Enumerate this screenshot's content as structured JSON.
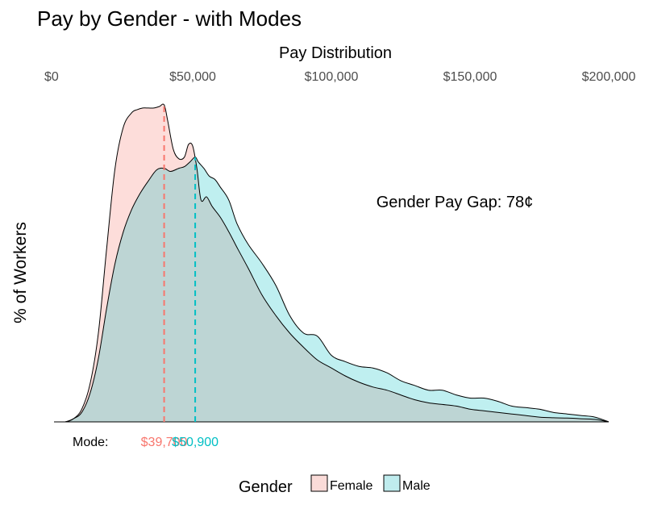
{
  "chart_data": {
    "type": "area",
    "title": "Pay by Gender - with Modes",
    "xlabel": "Pay Distribution",
    "ylabel": "% of Workers",
    "x_axis_position": "top",
    "xlim": [
      0,
      200000
    ],
    "x_ticks": [
      0,
      50000,
      100000,
      150000,
      200000
    ],
    "x_tick_labels": [
      "$0",
      "$50,000",
      "$100,000",
      "$150,000",
      "$200,000"
    ],
    "ylim": [
      0,
      1.0
    ],
    "grid": false,
    "y_tick_labels_shown": false,
    "series": [
      {
        "name": "Female",
        "color": "#F8766D",
        "fill": "#FADBD8",
        "mode": 39700,
        "mode_label": "$39,700",
        "x": [
          0,
          4000,
          7000,
          10000,
          13000,
          16000,
          19000,
          22000,
          25000,
          28000,
          30000,
          32000,
          34000,
          36000,
          38000,
          39700,
          41000,
          43000,
          45000,
          47000,
          48500,
          50000,
          51500,
          53000,
          55000,
          57000,
          60000,
          63000,
          66000,
          70000,
          75000,
          80000,
          85000,
          90000,
          95000,
          100000,
          105000,
          110000,
          115000,
          120000,
          125000,
          130000,
          135000,
          140000,
          145000,
          150000,
          155000,
          160000,
          165000,
          170000,
          175000,
          180000,
          185000,
          190000,
          195000,
          200000
        ],
        "values": [
          0,
          0,
          0.01,
          0.04,
          0.12,
          0.28,
          0.55,
          0.8,
          0.93,
          0.975,
          0.985,
          0.99,
          0.99,
          0.99,
          0.995,
          1.0,
          0.95,
          0.86,
          0.83,
          0.835,
          0.875,
          0.87,
          0.8,
          0.7,
          0.71,
          0.68,
          0.645,
          0.6,
          0.55,
          0.485,
          0.4,
          0.335,
          0.28,
          0.235,
          0.195,
          0.17,
          0.145,
          0.125,
          0.11,
          0.1,
          0.085,
          0.07,
          0.06,
          0.055,
          0.05,
          0.04,
          0.035,
          0.03,
          0.025,
          0.02,
          0.015,
          0.013,
          0.012,
          0.01,
          0.008,
          0
        ]
      },
      {
        "name": "Male",
        "color": "#00BFC4",
        "fill": "#BFECEE",
        "mode": 50900,
        "mode_label": "$50,900",
        "x": [
          0,
          4000,
          7000,
          10000,
          13000,
          16000,
          19000,
          22000,
          25000,
          28000,
          31000,
          34000,
          37000,
          39700,
          42000,
          45000,
          47000,
          49000,
          50900,
          52000,
          54000,
          56000,
          58000,
          60000,
          63000,
          66000,
          70000,
          75000,
          80000,
          85000,
          90000,
          95000,
          100000,
          105000,
          110000,
          115000,
          120000,
          125000,
          130000,
          135000,
          140000,
          145000,
          150000,
          155000,
          160000,
          165000,
          170000,
          175000,
          180000,
          185000,
          190000,
          195000,
          200000
        ],
        "values": [
          0,
          0,
          0.01,
          0.03,
          0.09,
          0.2,
          0.36,
          0.5,
          0.6,
          0.67,
          0.72,
          0.76,
          0.795,
          0.8,
          0.79,
          0.8,
          0.805,
          0.82,
          0.835,
          0.82,
          0.8,
          0.775,
          0.765,
          0.74,
          0.7,
          0.625,
          0.56,
          0.5,
          0.43,
          0.335,
          0.28,
          0.27,
          0.21,
          0.19,
          0.175,
          0.17,
          0.155,
          0.13,
          0.115,
          0.1,
          0.1,
          0.085,
          0.075,
          0.075,
          0.065,
          0.05,
          0.045,
          0.04,
          0.03,
          0.025,
          0.02,
          0.015,
          0
        ]
      }
    ],
    "annotations": [
      {
        "text": "Gender Pay Gap: 78¢"
      }
    ],
    "mode_label": "Mode:",
    "legend": {
      "title": "Gender",
      "position": "bottom",
      "items": [
        {
          "label": "Female",
          "fill": "#FADBD8"
        },
        {
          "label": "Male",
          "fill": "#BFECEE"
        }
      ]
    }
  }
}
